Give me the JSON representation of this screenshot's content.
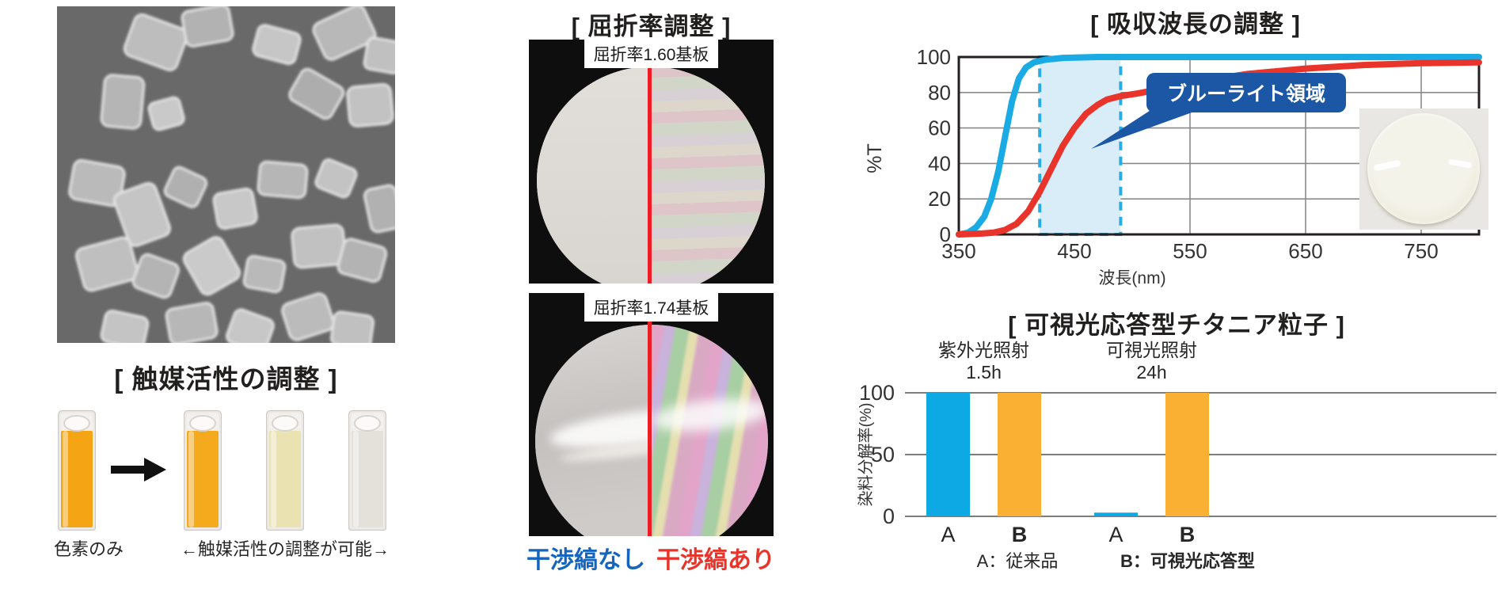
{
  "panels": {
    "catalytic": {
      "title": "[ 触媒活性の調整 ]",
      "label_left": "色素のみ",
      "label_right": "←触媒活性の調整が可能→",
      "cuvette_colors": [
        "#f5a514",
        "#f5a91c",
        "#ebe2b2",
        "#e4e1db"
      ]
    },
    "refractive": {
      "title": "[ 屈折率調整 ]",
      "photo1_label": "屈折率1.60基板",
      "photo2_label": "屈折率1.74基板",
      "label_no_fringe": "干渉縞なし",
      "label_fringe": "干渉縞あり"
    },
    "absorption": {
      "title": "[ 吸収波長の調整 ]"
    },
    "titania": {
      "title": "[ 可視光応答型チタニア粒子 ]"
    }
  },
  "colors": {
    "curve_blue": "#1babe4",
    "curve_red": "#e8342a",
    "bar_blue": "#0da9e5",
    "bar_orange": "#f9b033",
    "band_fill": "#d9edf9",
    "band_dash": "#2aace2",
    "callout_bg": "#1b57a5",
    "label_blue": "#1565c0",
    "label_red": "#e8342a",
    "grid_gray": "#8a8a8a",
    "axis_black": "#231f20"
  },
  "chart_data": [
    {
      "type": "line",
      "title": "[ 吸収波長の調整 ]",
      "xlabel": "波長(nm)",
      "ylabel": "%T",
      "xlim": [
        350,
        800
      ],
      "ylim": [
        0,
        100
      ],
      "xticks": [
        350,
        450,
        550,
        650,
        750
      ],
      "yticks": [
        0,
        20,
        40,
        60,
        80,
        100
      ],
      "grid": true,
      "band": {
        "label": "ブルーライト領域",
        "x0": 420,
        "x1": 490
      },
      "series": [
        {
          "name": "blue-curve",
          "color": "#1babe4",
          "points": [
            [
              350,
              0
            ],
            [
              358,
              1
            ],
            [
              365,
              4
            ],
            [
              372,
              10
            ],
            [
              378,
              20
            ],
            [
              384,
              35
            ],
            [
              390,
              55
            ],
            [
              396,
              75
            ],
            [
              402,
              88
            ],
            [
              408,
              94
            ],
            [
              415,
              97
            ],
            [
              425,
              98.5
            ],
            [
              440,
              99.5
            ],
            [
              470,
              100
            ],
            [
              800,
              100
            ]
          ]
        },
        {
          "name": "red-curve",
          "color": "#e8342a",
          "points": [
            [
              350,
              0
            ],
            [
              370,
              0.5
            ],
            [
              380,
              1
            ],
            [
              390,
              2.5
            ],
            [
              400,
              6
            ],
            [
              410,
              13
            ],
            [
              420,
              24
            ],
            [
              430,
              37
            ],
            [
              440,
              50
            ],
            [
              450,
              60
            ],
            [
              460,
              68
            ],
            [
              470,
              73
            ],
            [
              478,
              76
            ],
            [
              490,
              78
            ],
            [
              505,
              79.5
            ],
            [
              525,
              82
            ],
            [
              550,
              85
            ],
            [
              575,
              88
            ],
            [
              600,
              90.5
            ],
            [
              650,
              93.5
            ],
            [
              700,
              95.5
            ],
            [
              750,
              96.5
            ],
            [
              800,
              97
            ]
          ]
        }
      ]
    },
    {
      "type": "bar",
      "title": "[ 可視光応答型チタニア粒子 ]",
      "ylabel": "染料分解率(%)",
      "ylim": [
        0,
        100
      ],
      "yticks": [
        0,
        50,
        100
      ],
      "grid": true,
      "groups": [
        {
          "header": "紫外光照射",
          "duration": "1.5h",
          "bars": [
            {
              "label": "A",
              "value": 100,
              "color": "#0da9e5",
              "bold": false
            },
            {
              "label": "B",
              "value": 100,
              "color": "#f9b033",
              "bold": true
            }
          ]
        },
        {
          "header": "可視光照射",
          "duration": "24h",
          "bars": [
            {
              "label": "A",
              "value": 3,
              "color": "#0da9e5",
              "bold": false
            },
            {
              "label": "B",
              "value": 100,
              "color": "#f9b033",
              "bold": true
            }
          ]
        }
      ],
      "legend": [
        "A：従来品",
        "B：可視光応答型"
      ]
    }
  ]
}
